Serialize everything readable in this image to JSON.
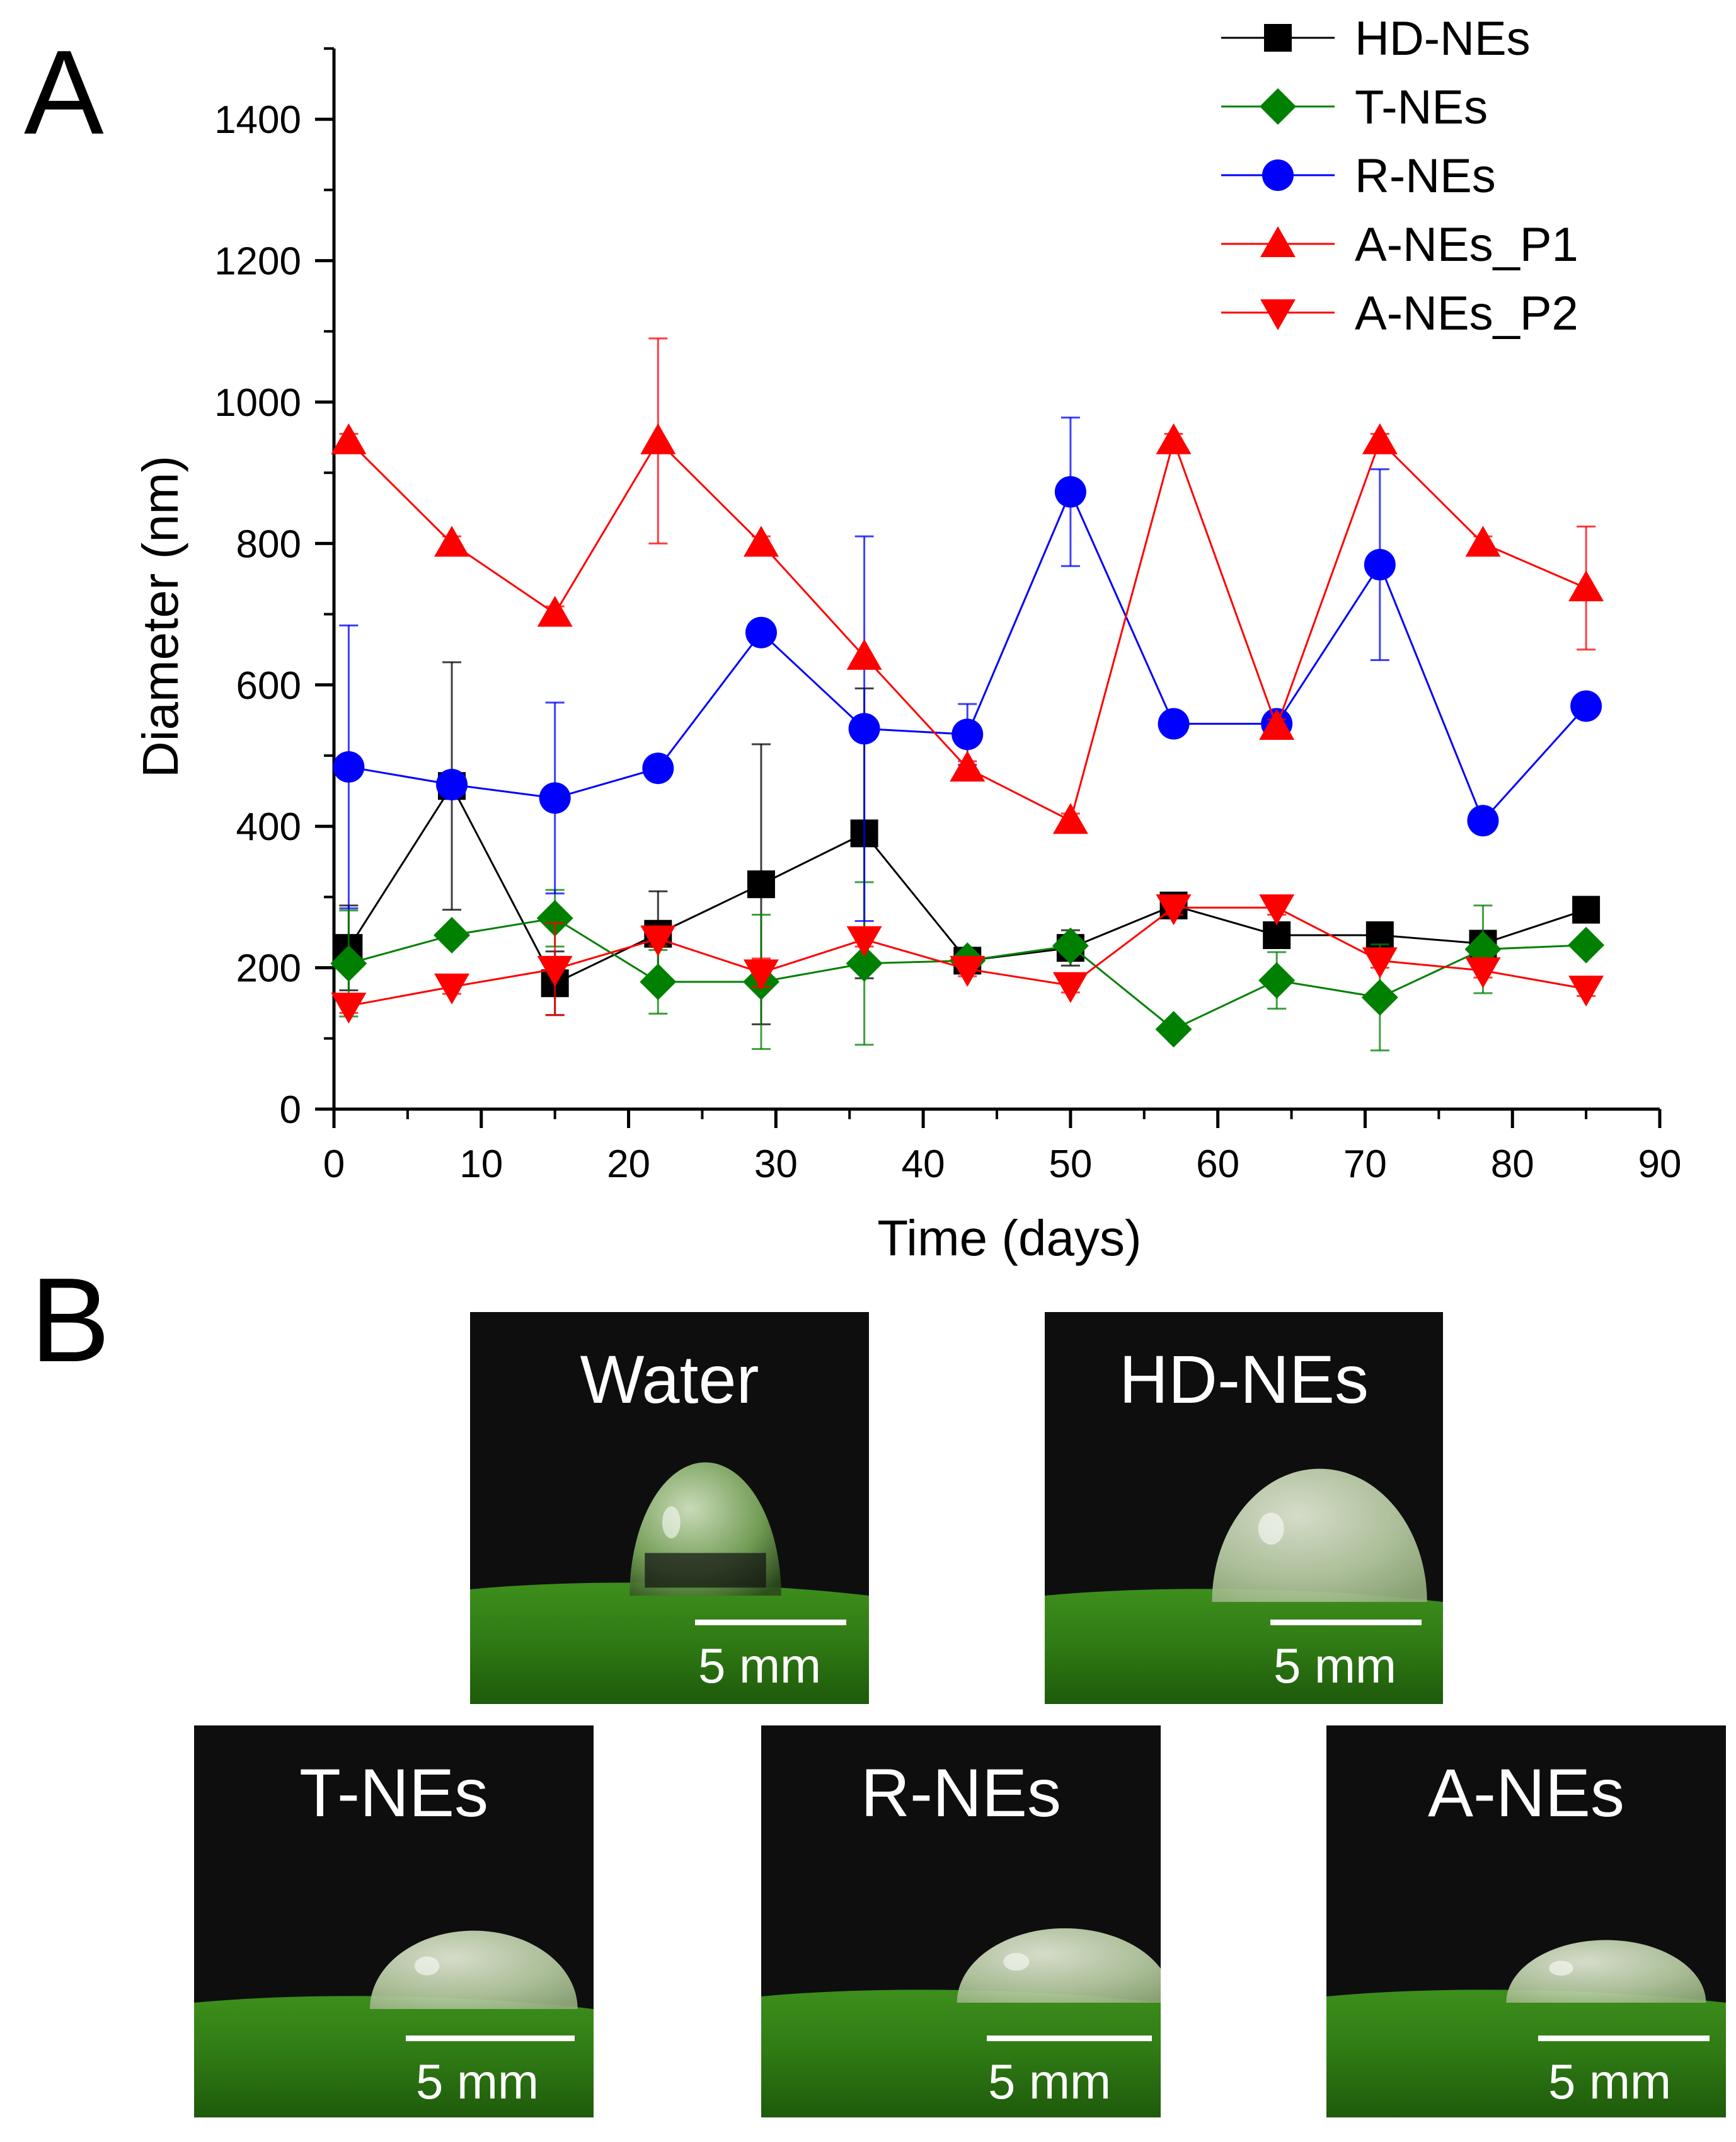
{
  "panel_labels": {
    "a": "A",
    "b": "B"
  },
  "chart_data": {
    "type": "line",
    "xlabel": "Time (days)",
    "ylabel": "Diameter (nm)",
    "xlim": [
      0,
      90
    ],
    "ylim": [
      0,
      1500
    ],
    "xticks": [
      0,
      10,
      20,
      30,
      40,
      50,
      60,
      70,
      80,
      90
    ],
    "yticks": [
      0,
      200,
      400,
      600,
      800,
      1000,
      1200,
      1400
    ],
    "x": [
      1,
      8,
      15,
      22,
      29,
      36,
      43,
      50,
      57,
      64,
      71,
      78,
      85
    ],
    "legend_position": "top-right",
    "series": [
      {
        "name": "HD-NEs",
        "color": "#000000",
        "marker": "square",
        "values": [
          228,
          457,
          178,
          248,
          318,
          390,
          210,
          228,
          288,
          246,
          246,
          234,
          282
        ],
        "errors": [
          60,
          175,
          45,
          60,
          198,
          205,
          10,
          25,
          12,
          10,
          10,
          10,
          10
        ]
      },
      {
        "name": "T-NEs",
        "color": "#008000",
        "marker": "diamond",
        "values": [
          206,
          246,
          270,
          180,
          180,
          206,
          210,
          231,
          113,
          182,
          158,
          226,
          232
        ],
        "errors": [
          75,
          10,
          40,
          45,
          95,
          115,
          10,
          12,
          10,
          40,
          75,
          62,
          10
        ]
      },
      {
        "name": "R-NEs",
        "color": "#0000ff",
        "marker": "circle",
        "values": [
          484,
          459,
          440,
          482,
          674,
          538,
          530,
          873,
          545,
          545,
          770,
          408,
          570
        ],
        "errors": [
          200,
          10,
          135,
          10,
          10,
          272,
          43,
          105,
          10,
          10,
          135,
          10,
          10
        ]
      },
      {
        "name": "A-NEs_P1",
        "color": "#ff0000",
        "marker": "triangle-up",
        "values": [
          945,
          800,
          701,
          945,
          800,
          640,
          482,
          408,
          945,
          541,
          945,
          800,
          737
        ],
        "errors": [
          10,
          10,
          10,
          145,
          10,
          0,
          10,
          10,
          10,
          10,
          10,
          10,
          87
        ]
      },
      {
        "name": "A-NEs_P2",
        "color": "#ff0000",
        "marker": "triangle-down",
        "values": [
          146,
          173,
          198,
          241,
          193,
          240,
          198,
          175,
          285,
          285,
          210,
          196,
          170
        ],
        "errors": [
          10,
          10,
          65,
          10,
          20,
          10,
          10,
          10,
          10,
          10,
          10,
          10,
          10
        ]
      }
    ]
  },
  "photos": [
    {
      "title": "Water",
      "scale": "5 mm"
    },
    {
      "title": "HD-NEs",
      "scale": "5 mm"
    },
    {
      "title": "T-NEs",
      "scale": "5 mm"
    },
    {
      "title": "R-NEs",
      "scale": "5 mm"
    },
    {
      "title": "A-NEs",
      "scale": "5 mm"
    }
  ]
}
